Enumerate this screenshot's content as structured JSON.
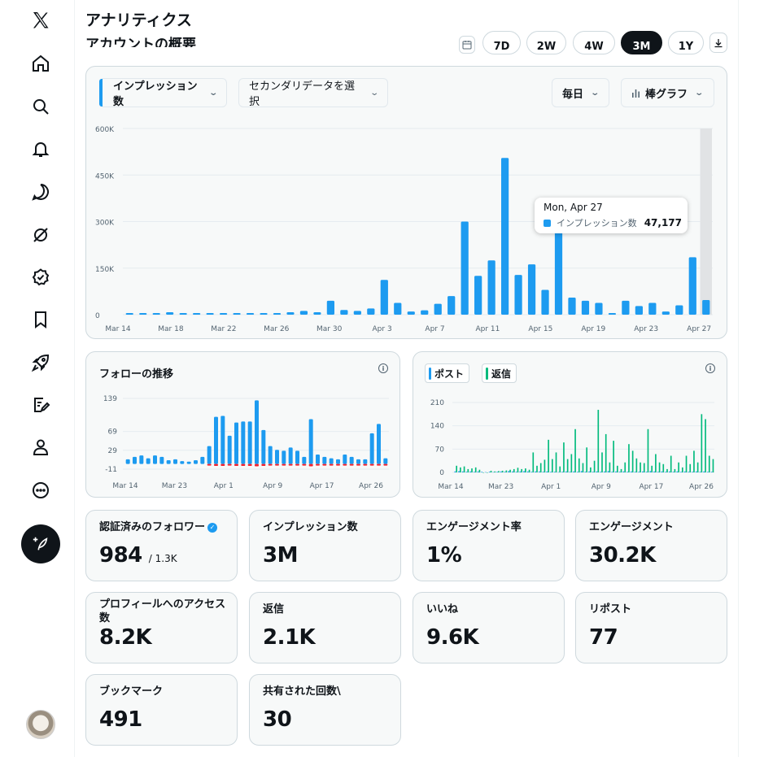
{
  "header": {
    "title": "アナリティクス",
    "subtitle": "アカウントの概要"
  },
  "periods": [
    {
      "label": "7D",
      "active": false
    },
    {
      "label": "2W",
      "active": false
    },
    {
      "label": "4W",
      "active": false
    },
    {
      "label": "3M",
      "active": true
    },
    {
      "label": "1Y",
      "active": false
    }
  ],
  "main_chart_controls": {
    "metric": "インプレッション数",
    "secondary": "セカンダリデータを選択",
    "interval": "毎日",
    "chart_type": "棒グラフ"
  },
  "tooltip": {
    "date": "Mon, Apr 27",
    "label": "インプレッション数",
    "value": "47,177"
  },
  "follow_card": {
    "title": "フォローの推移"
  },
  "posts_card": {
    "legend_posts": "ポスト",
    "legend_replies": "返信"
  },
  "stats": [
    {
      "label": "認証済みのフォロワー",
      "value": "984",
      "sub": "/ 1.3K"
    },
    {
      "label": "インプレッション数",
      "value": "3M"
    },
    {
      "label": "エンゲージメント率",
      "value": "1%"
    },
    {
      "label": "エンゲージメント",
      "value": "30.2K"
    },
    {
      "label": "プロフィールへのアクセス数",
      "value": "8.2K"
    },
    {
      "label": "返信",
      "value": "2.1K"
    },
    {
      "label": "いいね",
      "value": "9.6K"
    },
    {
      "label": "リポスト",
      "value": "77"
    },
    {
      "label": "ブックマーク",
      "value": "491"
    },
    {
      "label": "共有された回数\\",
      "value": "30"
    }
  ],
  "colors": {
    "blue": "#1d9bf0",
    "green": "#00ba7c",
    "red": "#f4212e",
    "dark": "#0f1419"
  },
  "chart_data": [
    {
      "type": "bar",
      "title": "インプレッション数",
      "ylim": [
        0,
        600000
      ],
      "yticks": [
        "0",
        "150K",
        "300K",
        "450K",
        "600K"
      ],
      "ytick_values": [
        0,
        150000,
        300000,
        450000,
        600000
      ],
      "xticks": [
        "Mar 14",
        "Mar 18",
        "Mar 22",
        "Mar 26",
        "Mar 30",
        "Apr 3",
        "Apr 7",
        "Apr 11",
        "Apr 15",
        "Apr 19",
        "Apr 23",
        "Apr 27"
      ],
      "values": [
        800,
        1500,
        5000,
        8000,
        4000,
        2000,
        1500,
        2000,
        1500,
        2000,
        3000,
        5000,
        8000,
        12000,
        8000,
        45000,
        15000,
        12000,
        20000,
        112000,
        38000,
        10000,
        14000,
        35000,
        60000,
        300000,
        125000,
        175000,
        505000,
        128000,
        162000,
        80000,
        302000,
        55000,
        45000,
        38000,
        5000,
        45000,
        28000,
        38000,
        10000,
        30000,
        185000,
        47177
      ]
    },
    {
      "type": "bar",
      "title": "フォローの推移",
      "ylim": [
        -11,
        139
      ],
      "yticks": [
        "-11",
        "29",
        "69",
        "139"
      ],
      "ytick_values": [
        -11,
        29,
        69,
        139
      ],
      "xticks": [
        "Mar 14",
        "Mar 23",
        "Apr 1",
        "Apr 9",
        "Apr 17",
        "Apr 26"
      ],
      "series": [
        {
          "name": "gain",
          "values": [
            10,
            15,
            18,
            12,
            18,
            15,
            8,
            10,
            6,
            5,
            8,
            15,
            38,
            100,
            102,
            60,
            88,
            90,
            90,
            135,
            72,
            38,
            30,
            28,
            35,
            28,
            15,
            95,
            20,
            15,
            12,
            10,
            20,
            15,
            10,
            10,
            65,
            85,
            12
          ]
        },
        {
          "name": "loss",
          "values": [
            0,
            0,
            0,
            0,
            0,
            0,
            0,
            0,
            0,
            0,
            0,
            0,
            -3,
            -4,
            -4,
            -3,
            -4,
            -4,
            -4,
            -5,
            -4,
            -3,
            -3,
            -3,
            -3,
            -3,
            -3,
            -5,
            -3,
            -3,
            -3,
            -3,
            -3,
            -3,
            -3,
            -3,
            -3,
            -3,
            -3
          ]
        }
      ]
    },
    {
      "type": "bar",
      "title": "ポスト / 返信",
      "ylim": [
        0,
        210
      ],
      "yticks": [
        "0",
        "70",
        "140",
        "210"
      ],
      "ytick_values": [
        0,
        70,
        140,
        210
      ],
      "xticks": [
        "Mar 14",
        "Mar 23",
        "Apr 1",
        "Apr 9",
        "Apr 17",
        "Apr 26"
      ],
      "series": [
        {
          "name": "ポスト",
          "values": [
            3,
            4,
            3,
            2,
            3,
            2,
            3,
            2,
            1,
            2,
            1,
            2,
            3,
            2,
            4,
            3,
            2,
            3,
            4,
            3,
            2,
            3,
            3,
            2,
            3,
            2,
            2,
            1,
            2,
            3,
            2,
            3,
            2,
            4,
            2,
            3,
            2,
            3,
            2,
            3,
            4,
            2,
            3,
            2,
            3,
            2,
            3,
            2,
            2,
            3,
            2,
            4,
            3,
            2,
            3,
            2,
            3,
            2,
            3,
            2,
            3,
            2,
            2,
            3,
            2,
            3,
            2,
            2
          ]
        },
        {
          "name": "返信",
          "values": [
            20,
            15,
            18,
            10,
            12,
            15,
            8,
            0,
            0,
            5,
            3,
            4,
            5,
            6,
            8,
            10,
            14,
            10,
            12,
            8,
            60,
            20,
            28,
            38,
            98,
            40,
            60,
            18,
            90,
            40,
            55,
            130,
            42,
            28,
            75,
            15,
            35,
            188,
            60,
            115,
            30,
            95,
            20,
            10,
            30,
            85,
            65,
            42,
            30,
            28,
            130,
            20,
            55,
            30,
            25,
            10,
            50,
            10,
            30,
            15,
            50,
            25,
            65,
            30,
            175,
            160,
            50,
            40
          ]
        }
      ]
    }
  ]
}
